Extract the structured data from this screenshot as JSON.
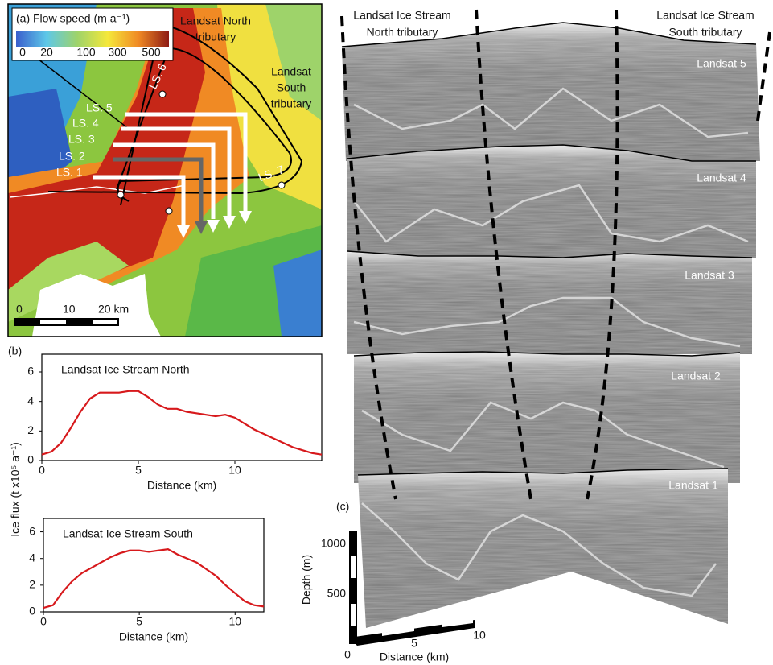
{
  "map": {
    "legend_title": "(a) Flow speed (m a⁻¹)",
    "colorbar_labels": [
      "0",
      "20",
      "100",
      "300",
      "500"
    ],
    "north_tributary": [
      "Landsat North",
      "tributary"
    ],
    "south_tributary": [
      "Landsat",
      "South",
      "tributary"
    ],
    "line_labels": [
      "LS. 1",
      "LS. 2",
      "LS. 3",
      "LS. 4",
      "LS. 5",
      "LS. 6",
      "LS. 7"
    ],
    "scale_labels": [
      "0",
      "10",
      "20 km"
    ]
  },
  "panel_b": {
    "label": "(b)",
    "ylabel": "Ice flux (t x10⁵ a⁻¹)"
  },
  "chart_data": [
    {
      "type": "line",
      "title": "Landsat Ice Stream North",
      "xlabel": "Distance (km)",
      "color": "#d7191c",
      "x": [
        0,
        0.5,
        1,
        1.5,
        2,
        2.5,
        3,
        3.5,
        4,
        4.5,
        5,
        5.5,
        6,
        6.5,
        7,
        7.5,
        8,
        8.5,
        9,
        9.5,
        10,
        10.5,
        11,
        11.5,
        12,
        12.5,
        13,
        13.5,
        14,
        14.5
      ],
      "values": [
        0.4,
        0.6,
        1.2,
        2.2,
        3.3,
        4.2,
        4.6,
        4.6,
        4.6,
        4.7,
        4.7,
        4.3,
        3.8,
        3.5,
        3.5,
        3.3,
        3.2,
        3.1,
        3.0,
        3.1,
        2.9,
        2.5,
        2.1,
        1.8,
        1.5,
        1.2,
        0.9,
        0.7,
        0.5,
        0.4
      ],
      "xlim": [
        0,
        14.5
      ],
      "xticks": [
        0,
        5,
        10
      ],
      "ylim": [
        0,
        7.2
      ],
      "yticks": [
        0,
        2,
        4,
        6
      ]
    },
    {
      "type": "line",
      "title": "Landsat Ice Stream South",
      "xlabel": "Distance (km)",
      "color": "#d7191c",
      "x": [
        0,
        0.5,
        1,
        1.5,
        2,
        2.5,
        3,
        3.5,
        4,
        4.5,
        5,
        5.5,
        6,
        6.5,
        7,
        7.5,
        8,
        8.5,
        9,
        9.5,
        10,
        10.5,
        11,
        11.5
      ],
      "values": [
        0.3,
        0.5,
        1.5,
        2.3,
        2.9,
        3.3,
        3.7,
        4.1,
        4.4,
        4.6,
        4.6,
        4.5,
        4.6,
        4.7,
        4.3,
        4.0,
        3.7,
        3.2,
        2.7,
        2.0,
        1.4,
        0.8,
        0.5,
        0.4
      ],
      "xlim": [
        0,
        11.5
      ],
      "xticks": [
        0,
        5,
        10
      ],
      "ylim": [
        0,
        7
      ],
      "yticks": [
        0,
        2,
        4,
        6
      ]
    }
  ],
  "radar": {
    "label": "(c)",
    "north_header": [
      "Landsat Ice Stream",
      "North tributary"
    ],
    "south_header": [
      "Landsat Ice Stream",
      "South tributary"
    ],
    "profiles": [
      "Landsat 5",
      "Landsat 4",
      "Landsat 3",
      "Landsat 2",
      "Landsat 1"
    ],
    "depth_label": "Depth (m)",
    "depth_ticks": [
      "1000",
      "500"
    ],
    "distance_label": "Distance (km)",
    "distance_ticks": [
      "0",
      "5",
      "10"
    ]
  }
}
